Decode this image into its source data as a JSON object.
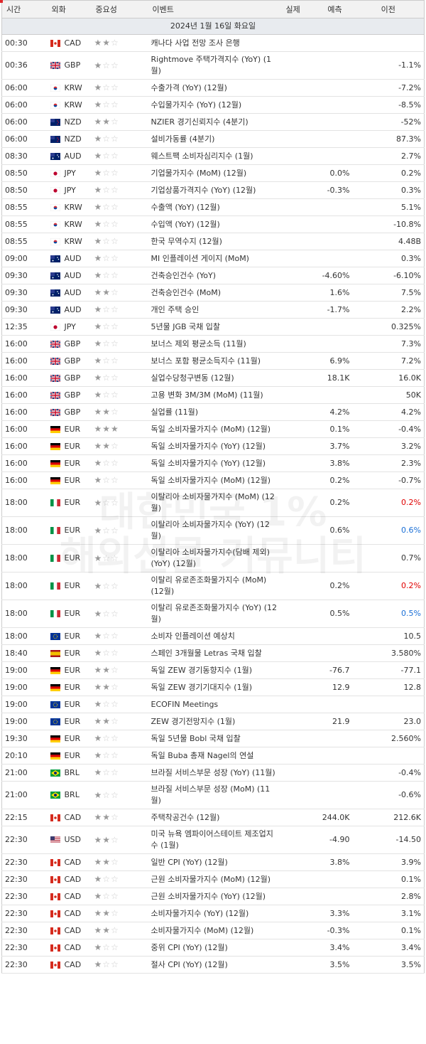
{
  "header": [
    "시간",
    "외화",
    "중요성",
    "이벤트",
    "실제",
    "예측",
    "이전"
  ],
  "date": "2024년 1월 16일 화요일",
  "watermark": [
    "대한민국 1%",
    "해외선물 커뮤니티"
  ],
  "highlight_row": 22,
  "rows": [
    {
      "time": "00:30",
      "flag": "ca",
      "currency": "CAD",
      "importance": 2,
      "event": "캐나다 사업 전망 조사 은행"
    },
    {
      "time": "00:36",
      "flag": "gb",
      "currency": "GBP",
      "importance": 1,
      "event": "Rightmove 주택가격지수 (YoY) (1월)",
      "previous": "-1.1%"
    },
    {
      "time": "06:00",
      "flag": "kr",
      "currency": "KRW",
      "importance": 1,
      "event": "수출가격 (YoY) (12월)",
      "previous": "-7.2%"
    },
    {
      "time": "06:00",
      "flag": "kr",
      "currency": "KRW",
      "importance": 1,
      "event": "수입물가지수 (YoY) (12월)",
      "previous": "-8.5%"
    },
    {
      "time": "06:00",
      "flag": "nz",
      "currency": "NZD",
      "importance": 2,
      "event": "NZIER 경기신뢰지수 (4분기)",
      "previous": "-52%"
    },
    {
      "time": "06:00",
      "flag": "nz",
      "currency": "NZD",
      "importance": 1,
      "event": "설비가동률 (4분기)",
      "previous": "87.3%"
    },
    {
      "time": "08:30",
      "flag": "au",
      "currency": "AUD",
      "importance": 1,
      "event": "웨스트팩 소비자심리지수 (1월)",
      "previous": "2.7%"
    },
    {
      "time": "08:50",
      "flag": "jp",
      "currency": "JPY",
      "importance": 1,
      "event": "기업물가지수 (MoM) (12월)",
      "forecast": "0.0%",
      "previous": "0.2%"
    },
    {
      "time": "08:50",
      "flag": "jp",
      "currency": "JPY",
      "importance": 1,
      "event": "기업상품가격지수 (YoY) (12월)",
      "forecast": "-0.3%",
      "previous": "0.3%"
    },
    {
      "time": "08:55",
      "flag": "kr",
      "currency": "KRW",
      "importance": 1,
      "event": "수출액 (YoY) (12월)",
      "previous": "5.1%"
    },
    {
      "time": "08:55",
      "flag": "kr",
      "currency": "KRW",
      "importance": 1,
      "event": "수입액 (YoY) (12월)",
      "previous": "-10.8%"
    },
    {
      "time": "08:55",
      "flag": "kr",
      "currency": "KRW",
      "importance": 1,
      "event": "한국 무역수지 (12월)",
      "previous": "4.48B"
    },
    {
      "time": "09:00",
      "flag": "au",
      "currency": "AUD",
      "importance": 1,
      "event": "MI 인플레이션 게이지 (MoM)",
      "previous": "0.3%"
    },
    {
      "time": "09:30",
      "flag": "au",
      "currency": "AUD",
      "importance": 1,
      "event": "건축승인건수 (YoY)",
      "forecast": "-4.60%",
      "previous": "-6.10%"
    },
    {
      "time": "09:30",
      "flag": "au",
      "currency": "AUD",
      "importance": 2,
      "event": "건축승인건수 (MoM)",
      "forecast": "1.6%",
      "previous": "7.5%"
    },
    {
      "time": "09:30",
      "flag": "au",
      "currency": "AUD",
      "importance": 1,
      "event": "개인 주택 승인",
      "forecast": "-1.7%",
      "previous": "2.2%"
    },
    {
      "time": "12:35",
      "flag": "jp",
      "currency": "JPY",
      "importance": 1,
      "event": "5년물 JGB 국채 입찰",
      "previous": "0.325%"
    },
    {
      "time": "16:00",
      "flag": "gb",
      "currency": "GBP",
      "importance": 1,
      "event": "보너스 제외 평균소득 (11월)",
      "previous": "7.3%"
    },
    {
      "time": "16:00",
      "flag": "gb",
      "currency": "GBP",
      "importance": 1,
      "event": "보너스 포함 평균소득지수 (11월)",
      "forecast": "6.9%",
      "previous": "7.2%"
    },
    {
      "time": "16:00",
      "flag": "gb",
      "currency": "GBP",
      "importance": 1,
      "event": "실업수당청구변동 (12월)",
      "forecast": "18.1K",
      "previous": "16.0K"
    },
    {
      "time": "16:00",
      "flag": "gb",
      "currency": "GBP",
      "importance": 1,
      "event": "고용 변화 3M/3M (MoM) (11월)",
      "previous": "50K"
    },
    {
      "time": "16:00",
      "flag": "gb",
      "currency": "GBP",
      "importance": 2,
      "event": "실업률 (11월)",
      "forecast": "4.2%",
      "previous": "4.2%"
    },
    {
      "time": "16:00",
      "flag": "de",
      "currency": "EUR",
      "importance": 3,
      "event": "독일 소비자물가지수 (MoM) (12월)",
      "forecast": "0.1%",
      "previous": "-0.4%"
    },
    {
      "time": "16:00",
      "flag": "de",
      "currency": "EUR",
      "importance": 2,
      "event": "독일 소비자물가지수 (YoY) (12월)",
      "forecast": "3.7%",
      "previous": "3.2%"
    },
    {
      "time": "16:00",
      "flag": "de",
      "currency": "EUR",
      "importance": 1,
      "event": "독일 소비자물가지수 (YoY) (12월)",
      "forecast": "3.8%",
      "previous": "2.3%"
    },
    {
      "time": "16:00",
      "flag": "de",
      "currency": "EUR",
      "importance": 1,
      "event": "독일 소비자물가지수 (MoM) (12월)",
      "forecast": "0.2%",
      "previous": "-0.7%"
    },
    {
      "time": "18:00",
      "flag": "it",
      "currency": "EUR",
      "importance": 1,
      "event": "이탈리아 소비자물가지수 (MoM) (12월)",
      "forecast": "0.2%",
      "previous": "0.2%",
      "previous_color": "#e00000"
    },
    {
      "time": "18:00",
      "flag": "it",
      "currency": "EUR",
      "importance": 1,
      "event": "이탈리아 소비자물가지수 (YoY) (12월)",
      "forecast": "0.6%",
      "previous": "0.6%",
      "previous_color": "#1a6fd6"
    },
    {
      "time": "18:00",
      "flag": "it",
      "currency": "EUR",
      "importance": 1,
      "event": "이탈리아 소비자물가지수(담배 제외) (YoY) (12월)",
      "previous": "0.7%"
    },
    {
      "time": "18:00",
      "flag": "it",
      "currency": "EUR",
      "importance": 1,
      "event": "이탈리 유로존조화물가지수 (MoM) (12월)",
      "forecast": "0.2%",
      "previous": "0.2%",
      "previous_color": "#e00000"
    },
    {
      "time": "18:00",
      "flag": "it",
      "currency": "EUR",
      "importance": 1,
      "event": "이탈리 유로존조화물가지수 (YoY) (12월)",
      "forecast": "0.5%",
      "previous": "0.5%",
      "previous_color": "#1a6fd6"
    },
    {
      "time": "18:00",
      "flag": "eu",
      "currency": "EUR",
      "importance": 1,
      "event": "소비자 인플레이션 예상치",
      "previous": "10.5"
    },
    {
      "time": "18:40",
      "flag": "es",
      "currency": "EUR",
      "importance": 1,
      "event": "스페인 3개월물 Letras 국채 입찰",
      "previous": "3.580%"
    },
    {
      "time": "19:00",
      "flag": "de",
      "currency": "EUR",
      "importance": 2,
      "event": "독일 ZEW 경기동향지수 (1월)",
      "forecast": "-76.7",
      "previous": "-77.1"
    },
    {
      "time": "19:00",
      "flag": "de",
      "currency": "EUR",
      "importance": 2,
      "event": "독일 ZEW 경기기대지수 (1월)",
      "forecast": "12.9",
      "previous": "12.8"
    },
    {
      "time": "19:00",
      "flag": "eu",
      "currency": "EUR",
      "importance": 1,
      "event": "ECOFIN Meetings"
    },
    {
      "time": "19:00",
      "flag": "eu",
      "currency": "EUR",
      "importance": 2,
      "event": "ZEW 경기전망지수 (1월)",
      "forecast": "21.9",
      "previous": "23.0"
    },
    {
      "time": "19:30",
      "flag": "de",
      "currency": "EUR",
      "importance": 1,
      "event": "독일 5년물 Bobl 국채 입찰",
      "previous": "2.560%"
    },
    {
      "time": "20:10",
      "flag": "de",
      "currency": "EUR",
      "importance": 1,
      "event": "독일 Buba 총재 Nagel의 연설"
    },
    {
      "time": "21:00",
      "flag": "br",
      "currency": "BRL",
      "importance": 1,
      "event": "브라질 서비스부문 성장 (YoY) (11월)",
      "previous": "-0.4%"
    },
    {
      "time": "21:00",
      "flag": "br",
      "currency": "BRL",
      "importance": 1,
      "event": "브라질 서비스부문 성장 (MoM) (11월)",
      "previous": "-0.6%"
    },
    {
      "time": "22:15",
      "flag": "ca",
      "currency": "CAD",
      "importance": 2,
      "event": "주택착공건수 (12월)",
      "forecast": "244.0K",
      "previous": "212.6K"
    },
    {
      "time": "22:30",
      "flag": "us",
      "currency": "USD",
      "importance": 2,
      "event": "미국 뉴욕 엠파이어스테이트 제조업지수 (1월)",
      "forecast": "-4.90",
      "previous": "-14.50"
    },
    {
      "time": "22:30",
      "flag": "ca",
      "currency": "CAD",
      "importance": 2,
      "event": "일반 CPI (YoY) (12월)",
      "forecast": "3.8%",
      "previous": "3.9%"
    },
    {
      "time": "22:30",
      "flag": "ca",
      "currency": "CAD",
      "importance": 1,
      "event": "근원 소비자물가지수 (MoM) (12월)",
      "previous": "0.1%"
    },
    {
      "time": "22:30",
      "flag": "ca",
      "currency": "CAD",
      "importance": 1,
      "event": "근원 소비자물가지수 (YoY) (12월)",
      "previous": "2.8%"
    },
    {
      "time": "22:30",
      "flag": "ca",
      "currency": "CAD",
      "importance": 2,
      "event": "소비자물가지수 (YoY) (12월)",
      "forecast": "3.3%",
      "previous": "3.1%"
    },
    {
      "time": "22:30",
      "flag": "ca",
      "currency": "CAD",
      "importance": 2,
      "event": "소비자물가지수 (MoM) (12월)",
      "forecast": "-0.3%",
      "previous": "0.1%"
    },
    {
      "time": "22:30",
      "flag": "ca",
      "currency": "CAD",
      "importance": 1,
      "event": "중위 CPI (YoY) (12월)",
      "forecast": "3.4%",
      "previous": "3.4%"
    },
    {
      "time": "22:30",
      "flag": "ca",
      "currency": "CAD",
      "importance": 1,
      "event": "절사 CPI (YoY) (12월)",
      "forecast": "3.5%",
      "previous": "3.5%"
    }
  ]
}
